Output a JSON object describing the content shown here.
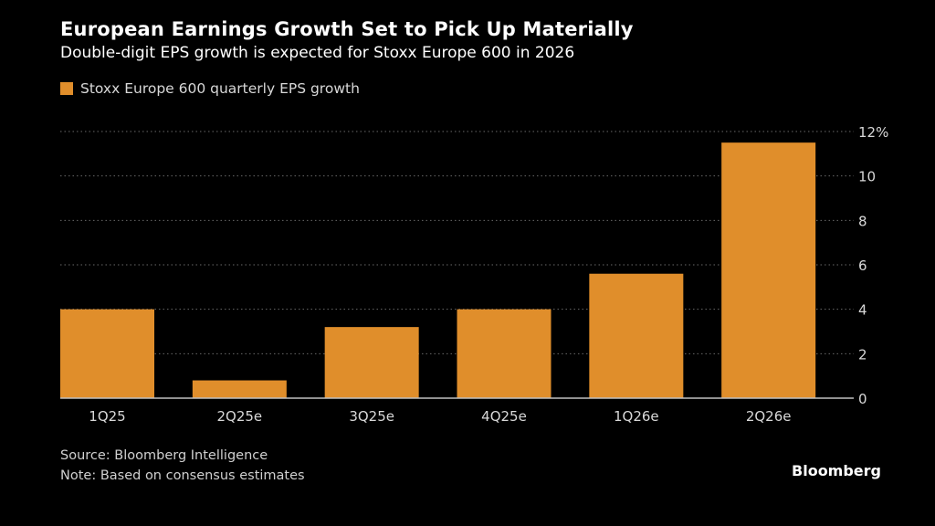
{
  "title": "European Earnings Growth Set to Pick Up Materially",
  "subtitle": "Double-digit EPS growth is expected for Stoxx Europe 600 in 2026",
  "colors": {
    "bar": "#E08E2B",
    "grid": "#6a6a6a",
    "axis": "#bfbfbf",
    "tick_text": "#d8d8d8"
  },
  "chart_data": {
    "type": "bar",
    "categories": [
      "1Q25",
      "2Q25e",
      "3Q25e",
      "4Q25e",
      "1Q26e",
      "2Q26e"
    ],
    "series": [
      {
        "name": "Stoxx Europe 600 quarterly EPS growth",
        "values": [
          4.0,
          0.8,
          3.2,
          4.0,
          5.6,
          11.5
        ]
      }
    ],
    "ylim": [
      0,
      12
    ],
    "yticks": [
      0,
      2,
      4,
      6,
      8,
      10,
      12
    ],
    "ytick_labels": [
      "0",
      "2",
      "4",
      "6",
      "8",
      "10",
      "12%"
    ],
    "grid": true,
    "legend_position": "top-left",
    "y_axis_side": "right"
  },
  "footer": {
    "source": "Source: Bloomberg Intelligence",
    "note": "Note: Based on consensus estimates"
  },
  "brand": "Bloomberg"
}
